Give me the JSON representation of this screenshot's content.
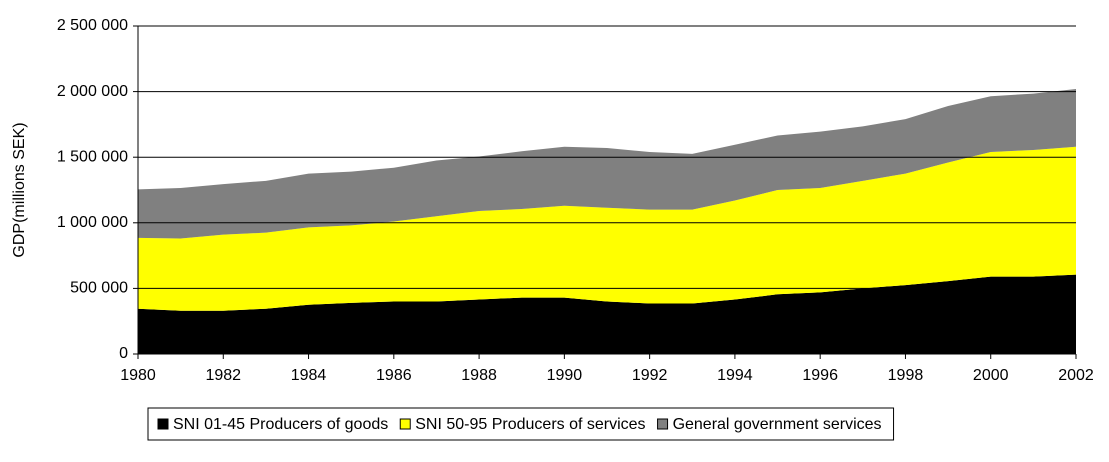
{
  "chart_data": {
    "type": "stacked-area",
    "y_label": "GDP(millions SEK)",
    "x": [
      1980,
      1981,
      1982,
      1983,
      1984,
      1985,
      1986,
      1987,
      1988,
      1989,
      1990,
      1991,
      1992,
      1993,
      1994,
      1995,
      1996,
      1997,
      1998,
      1999,
      2000,
      2001,
      2002
    ],
    "series": [
      {
        "name": "SNI 01-45 Producers of goods",
        "color": "#000000",
        "values": [
          345000,
          330000,
          330000,
          345000,
          375000,
          390000,
          400000,
          400000,
          415000,
          430000,
          430000,
          400000,
          385000,
          385000,
          415000,
          455000,
          470000,
          500000,
          525000,
          555000,
          590000,
          590000,
          605000
        ]
      },
      {
        "name": "SNI 50-95 Producers of services",
        "color": "#ffff00",
        "values": [
          540000,
          550000,
          580000,
          580000,
          590000,
          590000,
          610000,
          650000,
          675000,
          675000,
          700000,
          715000,
          715000,
          715000,
          755000,
          795000,
          795000,
          820000,
          850000,
          905000,
          950000,
          965000,
          975000
        ]
      },
      {
        "name": "General government services",
        "color": "#808080",
        "values": [
          370000,
          385000,
          385000,
          395000,
          410000,
          410000,
          410000,
          425000,
          415000,
          440000,
          450000,
          455000,
          440000,
          425000,
          425000,
          415000,
          430000,
          415000,
          415000,
          430000,
          425000,
          430000,
          440000
        ]
      }
    ],
    "xlim": [
      1980,
      2002
    ],
    "xticks": [
      1980,
      1982,
      1984,
      1986,
      1988,
      1990,
      1992,
      1994,
      1996,
      1998,
      2000,
      2002
    ],
    "ylim": [
      0,
      2500000
    ],
    "yticks": [
      0,
      {
        "value": 500000,
        "label": "500 000"
      },
      {
        "value": 1000000,
        "label": "1 000 000"
      },
      {
        "value": 1500000,
        "label": "1 500 000"
      },
      {
        "value": 2000000,
        "label": "2 000 000"
      },
      {
        "value": 2500000,
        "label": "2 500 000"
      }
    ],
    "grid": true,
    "legend": "bottom"
  }
}
